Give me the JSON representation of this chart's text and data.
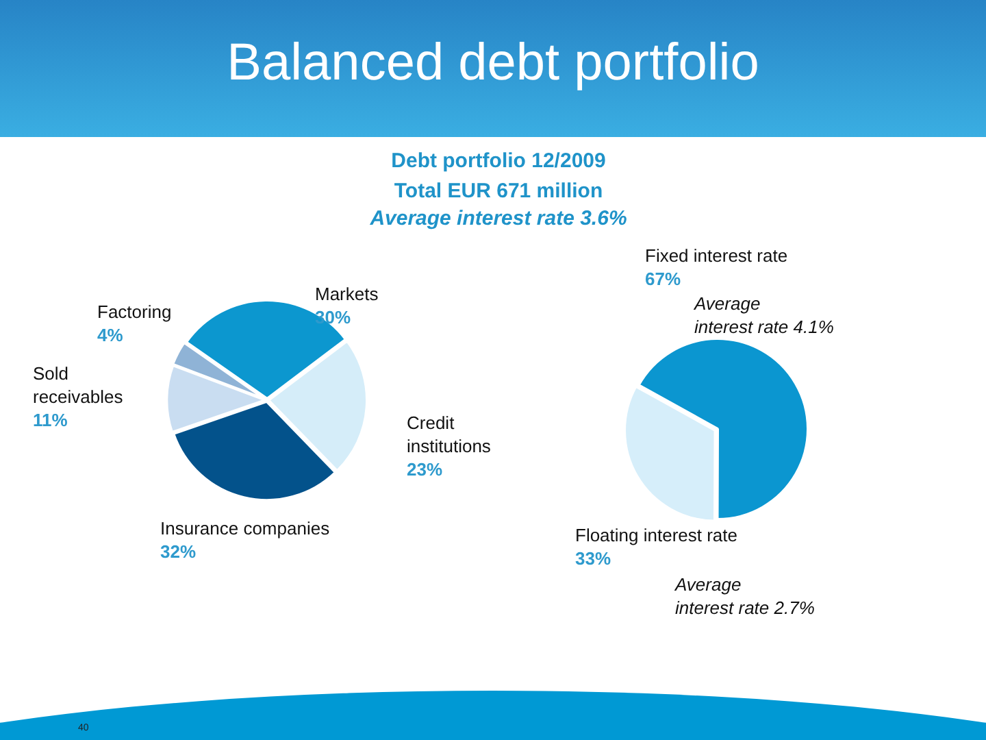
{
  "chart_data": [
    {
      "type": "pie",
      "title": "Balanced debt portfolio",
      "subtitle": "Debt portfolio 12/2009\nTotal EUR 671 million",
      "categories": [
        "Markets",
        "Credit institutions",
        "Insurance companies",
        "Sold receivables",
        "Factoring"
      ],
      "values": [
        30,
        23,
        32,
        11,
        4
      ],
      "value_labels": [
        "30%",
        "23%",
        "32%",
        "11%",
        "4%"
      ],
      "colors": [
        "#0c97cf",
        "#d5edf9",
        "#03528b",
        "#c9ddf1",
        "#8fb3d6"
      ],
      "annotations": [
        "Average interest rate 3.6%",
        "40"
      ]
    },
    {
      "type": "pie",
      "categories": [
        "Fixed interest rate",
        "Floating interest rate"
      ],
      "values": [
        67,
        33
      ],
      "value_labels": [
        "67%",
        "33%"
      ],
      "colors": [
        "#0b96d0",
        "#d6eefa"
      ],
      "annotations": [
        "Average\ninterest rate 4.1%",
        "Average\ninterest rate 2.7%"
      ]
    }
  ]
}
